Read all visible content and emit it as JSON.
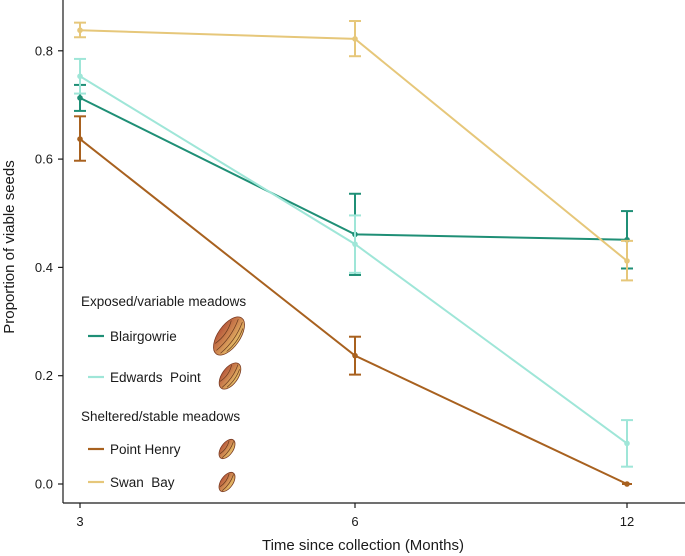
{
  "chart_data": {
    "type": "line",
    "title": "",
    "xlabel": "Time since collection (Months)",
    "ylabel": "Proportion of viable seeds",
    "x": [
      "3",
      "6",
      "12"
    ],
    "yticks": [
      "0.0",
      "0.2",
      "0.4",
      "0.6",
      "0.8"
    ],
    "ylim": [
      -0.02,
      0.88
    ],
    "series": [
      {
        "name": "Blairgowrie",
        "group": "Exposed/variable meadows",
        "color": "#1f8f76",
        "values": [
          0.713,
          0.461,
          0.451
        ],
        "err_low": [
          0.689,
          0.386,
          0.398
        ],
        "err_high": [
          0.737,
          0.536,
          0.504
        ]
      },
      {
        "name": "Edwards  Point",
        "group": "Exposed/variable meadows",
        "color": "#9fe6d8",
        "values": [
          0.753,
          0.443,
          0.075
        ],
        "err_low": [
          0.721,
          0.39,
          0.032
        ],
        "err_high": [
          0.785,
          0.496,
          0.118
        ]
      },
      {
        "name": "Point Henry",
        "group": "Sheltered/stable meadows",
        "color": "#a8611f",
        "values": [
          0.637,
          0.237,
          0.0
        ],
        "err_low": [
          0.597,
          0.202,
          0.0
        ],
        "err_high": [
          0.679,
          0.272,
          0.0
        ]
      },
      {
        "name": "Swan  Bay",
        "group": "Sheltered/stable meadows",
        "color": "#e6c77a",
        "values": [
          0.838,
          0.822,
          0.412
        ],
        "err_low": [
          0.825,
          0.79,
          0.376
        ],
        "err_high": [
          0.852,
          0.855,
          0.449
        ]
      }
    ],
    "legend": {
      "placement": "bottom-left",
      "groups": [
        {
          "title": "Exposed/variable meadows",
          "entries": [
            "Blairgowrie",
            "Edwards  Point"
          ]
        },
        {
          "title": "Sheltered/stable meadows",
          "entries": [
            "Point Henry",
            "Swan  Bay"
          ]
        }
      ]
    }
  }
}
